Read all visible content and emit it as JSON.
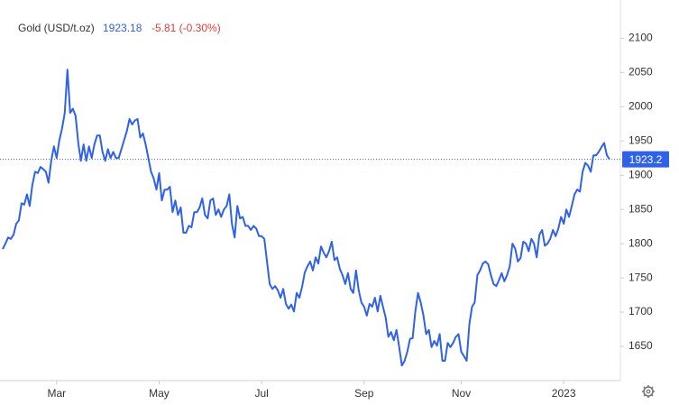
{
  "chart_data": {
    "type": "line",
    "header": {
      "name": "Gold (USD/t.oz)",
      "price": "1923.18",
      "change": "-5.81 (-0.30%)"
    },
    "series": [
      {
        "color": "#2f62e6",
        "values": [
          1792,
          1800,
          1809,
          1807,
          1813,
          1829,
          1834,
          1859,
          1857,
          1872,
          1855,
          1886,
          1905,
          1903,
          1912,
          1909,
          1905,
          1889,
          1921,
          1942,
          1925,
          1951,
          1968,
          1991,
          2054,
          1991,
          1997,
          1987,
          1947,
          1921,
          1945,
          1921,
          1942,
          1925,
          1945,
          1958,
          1958,
          1934,
          1921,
          1938,
          1925,
          1934,
          1925,
          1925,
          1938,
          1951,
          1964,
          1982,
          1974,
          1980,
          1982,
          1955,
          1961,
          1945,
          1925,
          1905,
          1895,
          1879,
          1903,
          1863,
          1879,
          1879,
          1883,
          1846,
          1863,
          1842,
          1853,
          1816,
          1816,
          1826,
          1824,
          1846,
          1846,
          1853,
          1866,
          1842,
          1837,
          1863,
          1866,
          1842,
          1850,
          1839,
          1850,
          1855,
          1872,
          1829,
          1809,
          1855,
          1837,
          1839,
          1826,
          1826,
          1820,
          1826,
          1822,
          1811,
          1811,
          1807,
          1774,
          1741,
          1734,
          1738,
          1732,
          1721,
          1734,
          1712,
          1705,
          1711,
          1701,
          1728,
          1721,
          1737,
          1758,
          1767,
          1774,
          1761,
          1780,
          1771,
          1796,
          1787,
          1780,
          1789,
          1803,
          1776,
          1780,
          1763,
          1754,
          1741,
          1757,
          1734,
          1728,
          1761,
          1732,
          1714,
          1708,
          1695,
          1712,
          1708,
          1721,
          1701,
          1724,
          1708,
          1692,
          1664,
          1671,
          1659,
          1674,
          1649,
          1622,
          1629,
          1642,
          1661,
          1662,
          1701,
          1728,
          1714,
          1695,
          1668,
          1674,
          1649,
          1658,
          1651,
          1668,
          1629,
          1629,
          1655,
          1649,
          1655,
          1664,
          1668,
          1642,
          1636,
          1629,
          1682,
          1708,
          1714,
          1754,
          1761,
          1771,
          1774,
          1770,
          1754,
          1741,
          1738,
          1747,
          1757,
          1745,
          1754,
          1767,
          1800,
          1793,
          1774,
          1779,
          1803,
          1800,
          1789,
          1807,
          1800,
          1780,
          1813,
          1820,
          1797,
          1800,
          1807,
          1820,
          1811,
          1822,
          1839,
          1829,
          1850,
          1839,
          1855,
          1872,
          1879,
          1876,
          1905,
          1918,
          1914,
          1905,
          1929,
          1929,
          1934,
          1941,
          1947,
          1929,
          1923.18
        ]
      }
    ],
    "xticks": [
      {
        "value": 20,
        "label": "Mar"
      },
      {
        "value": 58,
        "label": "May"
      },
      {
        "value": 96,
        "label": "Jul"
      },
      {
        "value": 134,
        "label": "Sep"
      },
      {
        "value": 170,
        "label": "Nov"
      },
      {
        "value": 208,
        "label": "2023"
      }
    ],
    "ylim": [
      1600,
      2140
    ],
    "yticks": [
      1650,
      1700,
      1750,
      1800,
      1850,
      1900,
      1950,
      2000,
      2050,
      2100
    ],
    "price_line": {
      "value": 1923.18,
      "label": "1923.2",
      "color": "#2f62e6"
    },
    "grid": false
  }
}
